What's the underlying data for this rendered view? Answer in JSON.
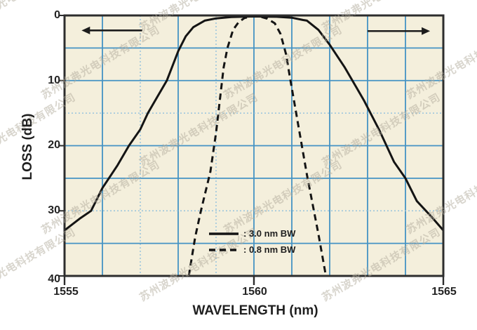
{
  "chart_data": {
    "type": "line",
    "title": "",
    "xlabel": "WAVELENGTH (nm)",
    "ylabel": "LOSS (dB)",
    "x_range": [
      1555,
      1565
    ],
    "y_range": [
      0,
      40
    ],
    "y_axis_inverted_downward": true,
    "x_ticks": [
      1555,
      1560,
      1565
    ],
    "y_ticks": [
      0,
      10,
      20,
      30,
      40
    ],
    "x_tick_labels": [
      "1555",
      "1560",
      "1565"
    ],
    "y_tick_labels": [
      "0",
      "10",
      "20",
      "30",
      "40"
    ],
    "grid": {
      "on": true,
      "vertical_step_nm": 1,
      "horizontal_step_db": 5,
      "dashed_vertical_at": [
        1557,
        1559
      ],
      "dashed_horizontal_at": [
        15,
        30
      ]
    },
    "legend_position": "inside-bottom-center",
    "series": [
      {
        "name": ": 3.0 nm BW",
        "style": "solid",
        "points": [
          [
            1555,
            33
          ],
          [
            1555.4,
            31.2
          ],
          [
            1555.7,
            30
          ],
          [
            1556,
            26.5
          ],
          [
            1556.4,
            23
          ],
          [
            1556.7,
            20
          ],
          [
            1557,
            17.5
          ],
          [
            1557.2,
            15
          ],
          [
            1557.45,
            12.5
          ],
          [
            1557.7,
            10
          ],
          [
            1558,
            5.5
          ],
          [
            1558.2,
            3.2
          ],
          [
            1558.4,
            1.8
          ],
          [
            1558.7,
            0.8
          ],
          [
            1559,
            0.45
          ],
          [
            1559.4,
            0.25
          ],
          [
            1560,
            0.15
          ],
          [
            1560.6,
            0.2
          ],
          [
            1561,
            0.35
          ],
          [
            1561.3,
            0.7
          ],
          [
            1561.4,
            0.8
          ],
          [
            1561.7,
            2.2
          ],
          [
            1562,
            4.5
          ],
          [
            1562.4,
            8
          ],
          [
            1562.7,
            11
          ],
          [
            1562.9,
            13
          ],
          [
            1563.3,
            17.5
          ],
          [
            1563.7,
            22.5
          ],
          [
            1564,
            25
          ],
          [
            1564.3,
            28.5
          ],
          [
            1564.7,
            31
          ],
          [
            1565,
            33
          ]
        ]
      },
      {
        "name": ": 0.8 nm BW",
        "style": "dashed",
        "points": [
          [
            1558.28,
            40
          ],
          [
            1558.45,
            34
          ],
          [
            1558.6,
            30
          ],
          [
            1558.85,
            24
          ],
          [
            1559,
            18
          ],
          [
            1559.1,
            13
          ],
          [
            1559.2,
            8
          ],
          [
            1559.3,
            5
          ],
          [
            1559.45,
            2.2
          ],
          [
            1559.6,
            1
          ],
          [
            1559.75,
            0.4
          ],
          [
            1559.95,
            0.15
          ],
          [
            1560.15,
            0.15
          ],
          [
            1560.35,
            0.5
          ],
          [
            1560.55,
            1.2
          ],
          [
            1560.7,
            2.8
          ],
          [
            1560.85,
            6
          ],
          [
            1560.95,
            9.5
          ],
          [
            1561.1,
            14.5
          ],
          [
            1561.25,
            19.5
          ],
          [
            1561.4,
            24.5
          ],
          [
            1561.55,
            29
          ],
          [
            1561.7,
            33.5
          ],
          [
            1561.9,
            40
          ]
        ]
      }
    ],
    "annotations": {
      "arrows": [
        {
          "direction": "left",
          "y_db": 2.3,
          "from_nm": 1557.05,
          "to_nm": 1555.45
        },
        {
          "direction": "right",
          "y_db": 2.4,
          "from_nm": 1563.0,
          "to_nm": 1564.65
        }
      ]
    }
  },
  "watermark": {
    "text": "苏州波弗光电科技有限公司"
  },
  "colors": {
    "page_bg": "#ffffff",
    "plot_bg": "#f4efdc",
    "grid": "#4593c4",
    "grid_light": "#96c3dd",
    "frame": "#2d2d2d",
    "curve": "#141414",
    "text": "#1f1f1f"
  }
}
